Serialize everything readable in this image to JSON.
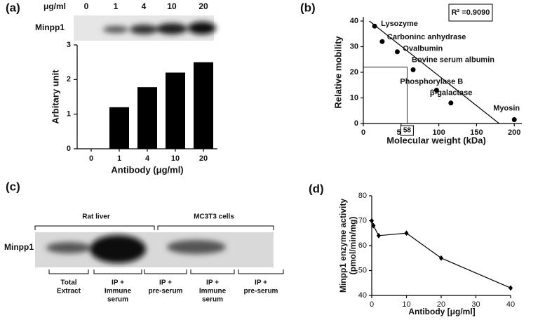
{
  "chart_data": [
    {
      "type": "bar",
      "label": "(a)",
      "blot_label": "Minpp1",
      "blot_unit": "μg/ml",
      "blot_lanes": [
        "0",
        "1",
        "4",
        "10",
        "20"
      ],
      "categories": [
        "0",
        "1",
        "4",
        "10",
        "20"
      ],
      "values": [
        0,
        1.2,
        1.78,
        2.2,
        2.5
      ],
      "color": "#000000",
      "ylim": [
        0,
        3
      ],
      "yticks": [
        0,
        1,
        2,
        3
      ],
      "xlabel": "Antibody (μg/ml)",
      "ylabel": "Arbitary unit"
    },
    {
      "type": "scatter",
      "label": "(b)",
      "x": [
        15,
        25,
        45,
        66,
        97,
        116,
        200
      ],
      "y": [
        38,
        32,
        28,
        21,
        13,
        8,
        1.5
      ],
      "point_labels": [
        "Lysozyme",
        "Carboninc anhydrase",
        "Ovalbumin",
        "Bovine serum albumin",
        "Phosphorylase B",
        "β-galactase",
        "Myosin"
      ],
      "fit": {
        "x": [
          8,
          180
        ],
        "y": [
          40,
          0
        ]
      },
      "annotation": "R² =0.9090",
      "highlight": {
        "x": 58,
        "y": 22
      },
      "xlim": [
        0,
        210
      ],
      "ylim": [
        0,
        40
      ],
      "xticks": [
        0,
        50,
        100,
        150,
        200
      ],
      "yticks": [
        0,
        10,
        20,
        30,
        40
      ],
      "xlabel": "Molecular weight (kDa)",
      "ylabel": "Relative  mobility"
    },
    {
      "type": "blot",
      "label": "(c)",
      "row_label": "Minpp1",
      "groups": [
        "Rat liver",
        "MC3T3 cells"
      ],
      "lanes": [
        [
          "Total",
          "Extract"
        ],
        [
          "IP +",
          "Immune",
          "serum"
        ],
        [
          "IP +",
          "pre-serum"
        ],
        [
          "IP +",
          "Immune",
          "serum"
        ],
        [
          "IP +",
          "pre-serum"
        ]
      ]
    },
    {
      "type": "line",
      "label": "(d)",
      "x": [
        0,
        0.5,
        2,
        10,
        20,
        40
      ],
      "values": [
        70,
        68,
        64,
        65,
        55,
        43
      ],
      "color": "#000000",
      "xlim": [
        0,
        40
      ],
      "ylim": [
        40,
        80
      ],
      "xticks": [
        0,
        10,
        20,
        30,
        40
      ],
      "yticks": [
        40,
        50,
        60,
        70,
        80
      ],
      "xlabel": "Antibody [μg/ml]",
      "ylabel": [
        "Minpp1 enzyme activity",
        "(pmol/min/mg)"
      ]
    }
  ]
}
